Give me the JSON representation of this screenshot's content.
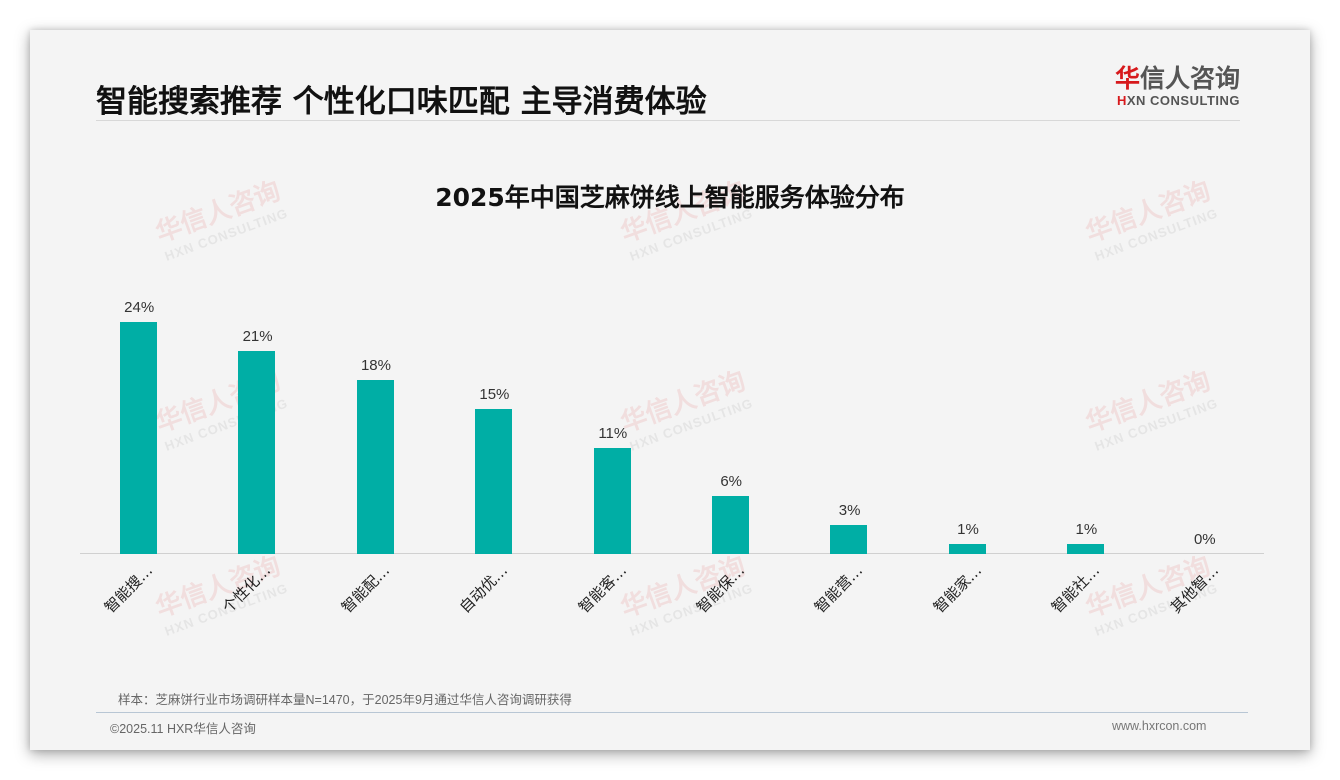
{
  "header": {
    "title": "智能搜索推荐 个性化口味匹配 主导消费体验",
    "logo_cn_first": "华",
    "logo_cn_rest": "信人咨询",
    "logo_en_first": "H",
    "logo_en_rest": "XN CONSULTING"
  },
  "watermark": {
    "cn": "华信人咨询",
    "en": "HXN CONSULTING"
  },
  "chart_data": {
    "type": "bar",
    "title": "2025年中国芝麻饼线上智能服务体验分布",
    "categories": [
      "智能搜…",
      "个性化…",
      "智能配…",
      "自动优…",
      "智能客…",
      "智能保…",
      "智能营…",
      "智能家…",
      "智能社…",
      "其他智…"
    ],
    "values": [
      24,
      21,
      18,
      15,
      11,
      6,
      3,
      1,
      1,
      0
    ],
    "value_labels": [
      "24%",
      "21%",
      "18%",
      "15%",
      "11%",
      "6%",
      "3%",
      "1%",
      "1%",
      "0%"
    ],
    "xlabel": "",
    "ylabel": "",
    "ylim": [
      0,
      26
    ],
    "unit": "%",
    "grid": false,
    "legend": "none",
    "bar_color": "#00aea5"
  },
  "footer": {
    "note": "样本：芝麻饼行业市场调研样本量N=1470，于2025年9月通过华信人咨询调研获得",
    "copyright": "©2025.11 HXR华信人咨询",
    "website": "www.hxrcon.com"
  }
}
